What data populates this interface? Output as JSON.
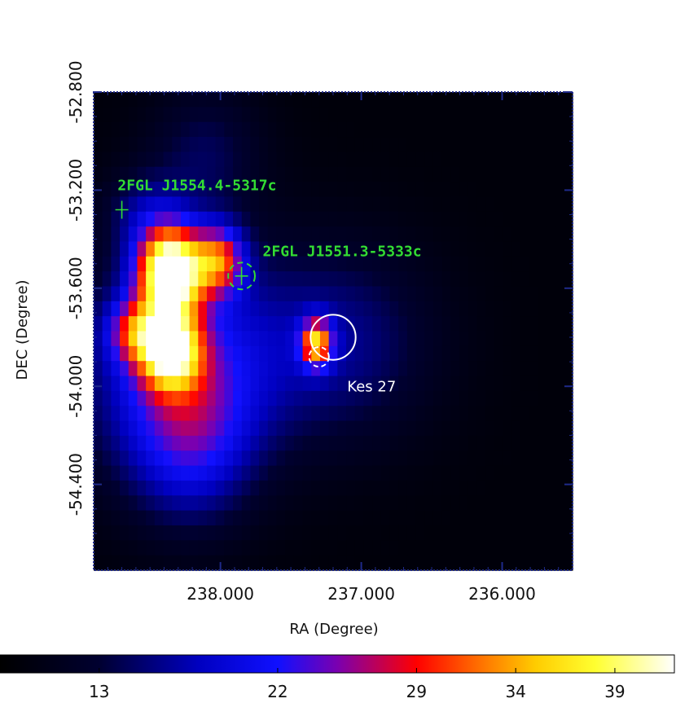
{
  "chart_data": {
    "type": "heatmap",
    "title": "",
    "xlabel": "RA (Degree)",
    "ylabel": "DEC (Degree)",
    "x_axis_reversed": true,
    "xlim": [
      238.9,
      235.5
    ],
    "ylim": [
      -54.75,
      -52.8
    ],
    "x_ticks": [
      238.0,
      237.0,
      236.0
    ],
    "x_tick_labels": [
      "238.000",
      "237.000",
      "236.000"
    ],
    "y_ticks": [
      -52.8,
      -53.2,
      -53.6,
      -54.0,
      -54.4
    ],
    "y_tick_labels": [
      "-52.800",
      "-53.200",
      "-53.600",
      "-54.000",
      "-54.400"
    ],
    "colormap": "heat",
    "colorbar": {
      "min": 8,
      "max": 42,
      "ticks": [
        13,
        22,
        29,
        34,
        39
      ],
      "tick_labels": [
        "13",
        "22",
        "29",
        "34",
        "39"
      ],
      "stops": [
        {
          "v": 8,
          "color": "#000000"
        },
        {
          "v": 13,
          "color": "#000030"
        },
        {
          "v": 18,
          "color": "#0000c0"
        },
        {
          "v": 22,
          "color": "#1010ff"
        },
        {
          "v": 25,
          "color": "#7a00b0"
        },
        {
          "v": 29,
          "color": "#ff0000"
        },
        {
          "v": 32,
          "color": "#ff6a00"
        },
        {
          "v": 35,
          "color": "#ffcc00"
        },
        {
          "v": 38,
          "color": "#ffff30"
        },
        {
          "v": 42,
          "color": "#ffffff"
        }
      ]
    },
    "emission_blobs": [
      {
        "ra": 238.35,
        "dec": -53.55,
        "sra": 0.16,
        "sdec": 0.13,
        "amp": 33
      },
      {
        "ra": 238.0,
        "dec": -53.5,
        "sra": 0.13,
        "sdec": 0.1,
        "amp": 17
      },
      {
        "ra": 238.35,
        "dec": -53.88,
        "sra": 0.15,
        "sdec": 0.11,
        "amp": 24
      },
      {
        "ra": 238.6,
        "dec": -53.8,
        "sra": 0.14,
        "sdec": 0.09,
        "amp": 12
      },
      {
        "ra": 237.3,
        "dec": -53.85,
        "sra": 0.08,
        "sdec": 0.07,
        "amp": 20
      },
      {
        "ra": 238.3,
        "dec": -53.95,
        "sra": 0.5,
        "sdec": 0.35,
        "amp": 12
      },
      {
        "ra": 238.2,
        "dec": -54.25,
        "sra": 0.3,
        "sdec": 0.25,
        "amp": 8
      },
      {
        "ra": 237.15,
        "dec": -53.85,
        "sra": 0.5,
        "sdec": 0.3,
        "amp": 7
      },
      {
        "ra": 238.1,
        "dec": -53.05,
        "sra": 0.3,
        "sdec": 0.2,
        "amp": 5
      },
      {
        "ra": 238.55,
        "dec": -53.3,
        "sra": 0.2,
        "sdec": 0.12,
        "amp": 5
      }
    ],
    "background_level": 9,
    "annotations": [
      {
        "label": "2FGL J1554.4-5317c",
        "ra": 238.7,
        "dec": -53.28,
        "marker": "cross",
        "color": "#33dd33",
        "label_ra": 238.73,
        "label_dec": -53.2
      },
      {
        "label": "2FGL J1551.3-5333c",
        "ra": 237.85,
        "dec": -53.55,
        "marker": "cross",
        "color": "#33dd33",
        "label_ra": 237.7,
        "label_dec": -53.47,
        "circle_radius_deg": 0.095,
        "circle_style": "dashed"
      }
    ],
    "snr": {
      "label": "Kes 27",
      "ra": 237.2,
      "dec": -53.8,
      "radius_deg": 0.16,
      "color": "#ffffff",
      "label_ra": 237.1,
      "label_dec": -54.02
    },
    "extra_circles": [
      {
        "ra": 237.3,
        "dec": -53.88,
        "radius_deg": 0.07,
        "style": "dashed",
        "color": "#ffffff"
      }
    ]
  }
}
